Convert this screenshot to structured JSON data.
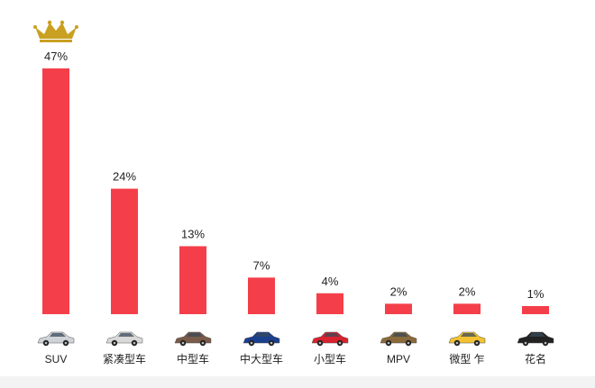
{
  "chart_data": {
    "type": "bar",
    "categories": [
      "SUV",
      "紧凑型车",
      "中型车",
      "中大型车",
      "小型车",
      "MPV",
      "微型 乍",
      "花名"
    ],
    "values": [
      47,
      24,
      13,
      7,
      4,
      2,
      2,
      1
    ],
    "value_labels": [
      "47%",
      "24%",
      "13%",
      "7%",
      "4%",
      "2%",
      "2%",
      "1%"
    ],
    "value_unit": "%",
    "ylim": [
      0,
      47
    ],
    "grid": false,
    "legend": "none",
    "bar_color": "#f43f4a",
    "icons": [
      "suv-car-icon",
      "compact-car-icon",
      "midsize-car-icon",
      "large-car-icon",
      "small-car-icon",
      "mpv-car-icon",
      "mini-car-icon",
      "last-car-icon"
    ],
    "icon_colors": [
      "#cfd3d8",
      "#d9d9d9",
      "#7a5a48",
      "#1a3f8f",
      "#d8222e",
      "#8a6a3a",
      "#f2c232",
      "#222222"
    ],
    "top_icon": "crown-icon",
    "top_icon_color": "#c9a021"
  }
}
